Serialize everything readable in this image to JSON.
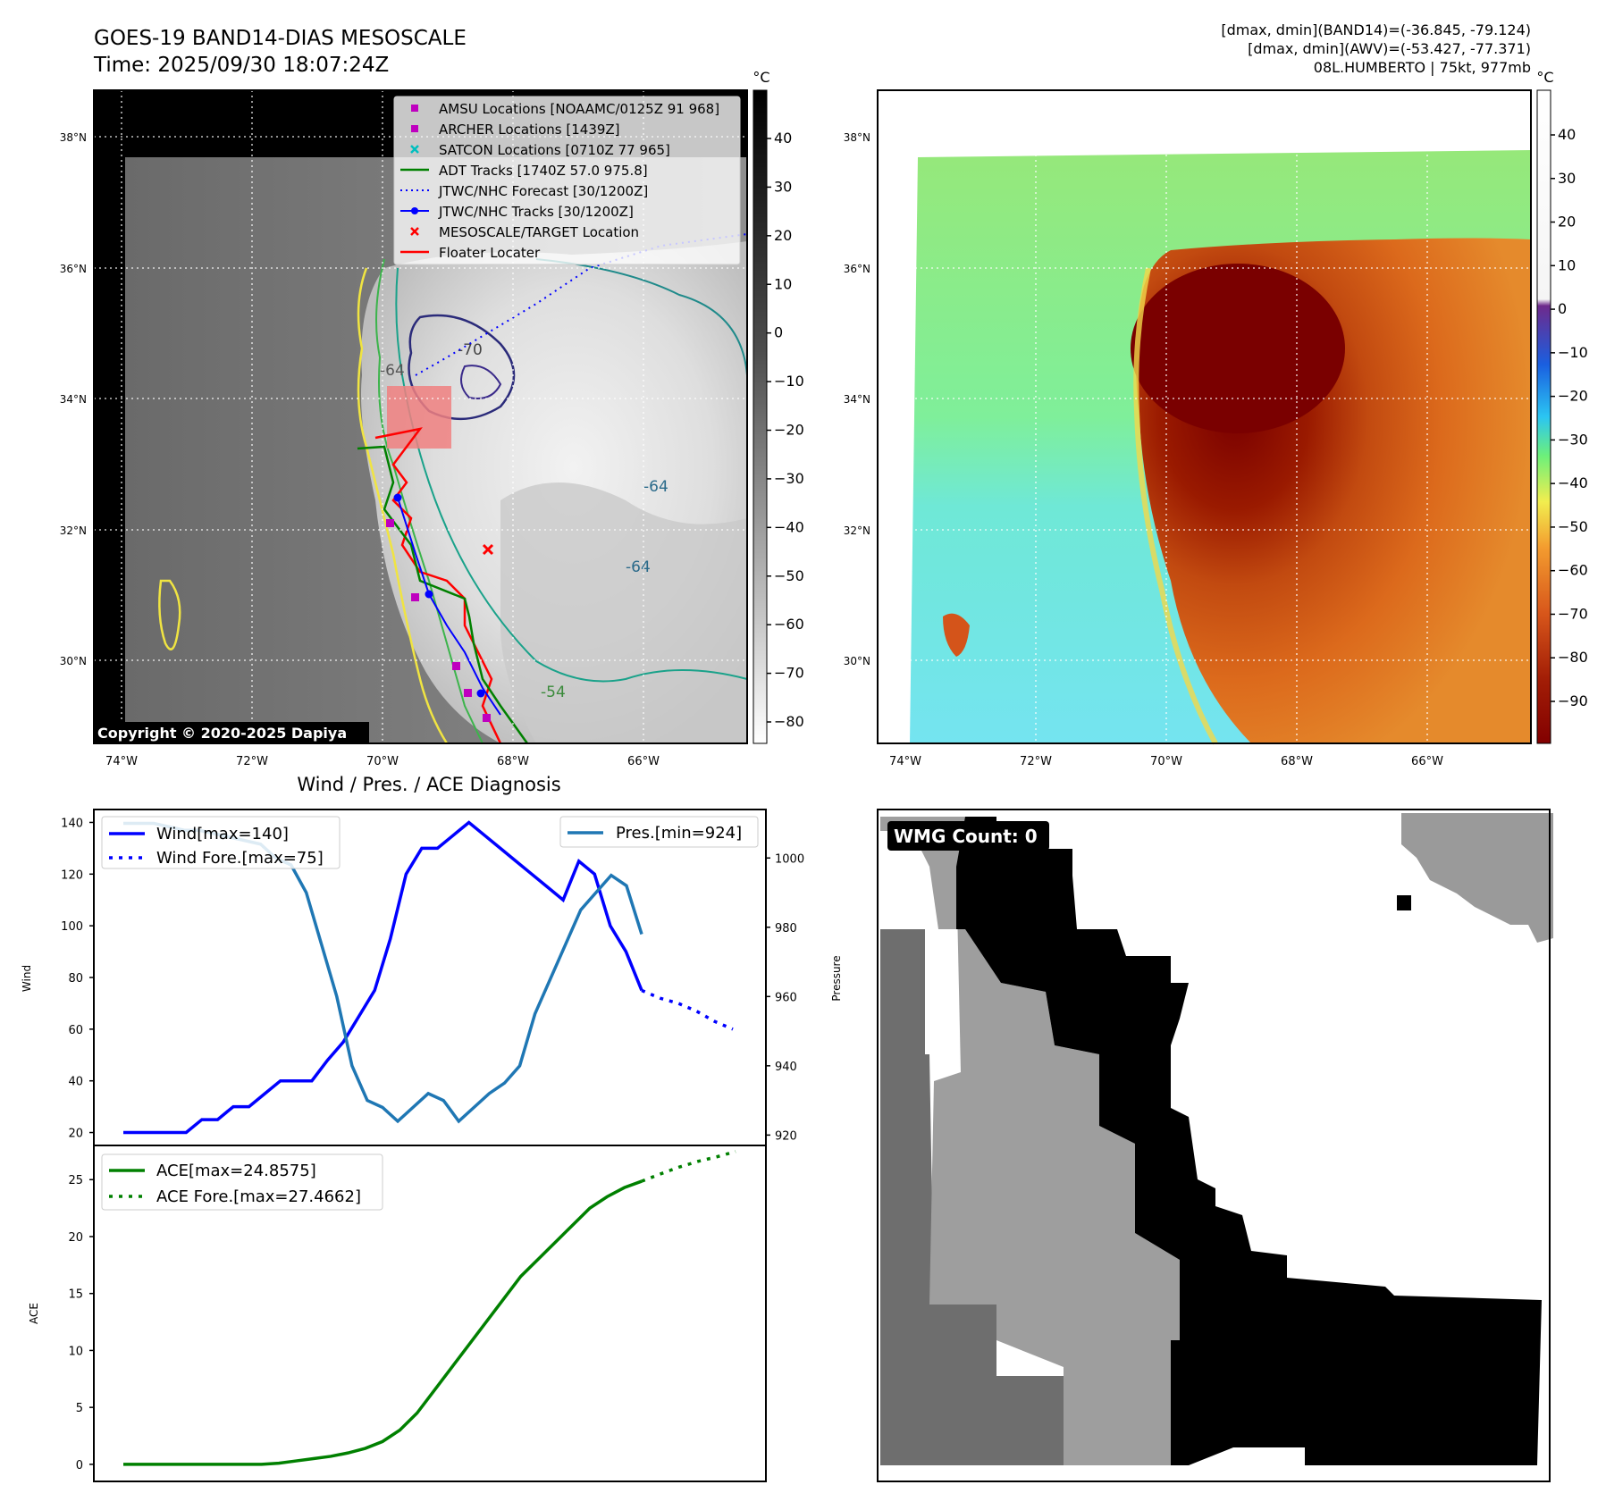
{
  "header": {
    "title": "GOES-19 BAND14-DIAS MESOSCALE",
    "time": "Time: 2025/09/30 18:07:24Z",
    "stats_line1": "[dmax, dmin](BAND14)=(-36.845, -79.124)",
    "stats_line2": "[dmax, dmin](AWV)=(-53.427, -77.371)",
    "storm": "08L.HUMBERTO | 75kt, 977mb"
  },
  "maps": {
    "lat_labels": [
      "38°N",
      "36°N",
      "34°N",
      "32°N",
      "30°N"
    ],
    "lon_labels": [
      "74°W",
      "72°W",
      "70°W",
      "68°W",
      "66°W"
    ],
    "copyright": "Copyright © 2020-2025 Dapiya",
    "contour_labels": [
      "-64",
      "-70",
      "-64",
      "-54",
      "-64"
    ],
    "colorbar_unit": "°C",
    "gray_colorbar_ticks": [
      "40",
      "30",
      "20",
      "10",
      "0",
      "−10",
      "−20",
      "−30",
      "−40",
      "−50",
      "−60",
      "−70",
      "−80"
    ],
    "color_colorbar_ticks": [
      "40",
      "30",
      "20",
      "10",
      "0",
      "−10",
      "−20",
      "−30",
      "−40",
      "−50",
      "−60",
      "−70",
      "−80",
      "−90"
    ],
    "legend": [
      {
        "label": "AMSU Locations [NOAAMC/0125Z 91 968]",
        "color": "#bf00bf",
        "marker": "square"
      },
      {
        "label": "ARCHER Locations [1439Z]",
        "color": "#bf00bf",
        "marker": "square"
      },
      {
        "label": "SATCON Locations [0710Z 77 965]",
        "color": "#00bfbf",
        "marker": "x"
      },
      {
        "label": "ADT Tracks [1740Z 57.0 975.8]",
        "color": "#008000",
        "marker": "line"
      },
      {
        "label": "JTWC/NHC Forecast [30/1200Z]",
        "color": "#0000ff",
        "marker": "dotted"
      },
      {
        "label": "JTWC/NHC Tracks [30/1200Z]",
        "color": "#0000ff",
        "marker": "line-dot"
      },
      {
        "label": "MESOSCALE/TARGET Location",
        "color": "#ff0000",
        "marker": "x"
      },
      {
        "label": "Floater Locater",
        "color": "#ff0000",
        "marker": "line"
      }
    ]
  },
  "diagnosis": {
    "title": "Wind / Pres. / ACE Diagnosis",
    "wind_legend": [
      "Wind[max=140]",
      "Wind Fore.[max=75]"
    ],
    "pres_legend": [
      "Pres.[min=924]"
    ],
    "ace_legend": [
      "ACE[max=24.8575]",
      "ACE Fore.[max=27.4662]"
    ],
    "wind_ylabel": "Wind",
    "pres_ylabel": "Pressure",
    "ace_ylabel": "ACE",
    "wind_ticks": [
      "140",
      "120",
      "100",
      "80",
      "60",
      "40",
      "20"
    ],
    "pres_ticks": [
      "1000",
      "980",
      "960",
      "940",
      "920"
    ],
    "ace_ticks": [
      "25",
      "20",
      "15",
      "10",
      "5",
      "0"
    ]
  },
  "wmg": {
    "label": "WMG Count: 0"
  },
  "chart_data": [
    {
      "type": "line",
      "title": "Wind / Pres. / ACE Diagnosis",
      "ylabel": "Wind",
      "ylim": [
        15,
        145
      ],
      "series": [
        {
          "name": "Wind[max=140]",
          "color": "#0000ff",
          "values": [
            20,
            20,
            20,
            20,
            20,
            25,
            25,
            30,
            30,
            35,
            40,
            40,
            40,
            48,
            55,
            65,
            75,
            95,
            120,
            130,
            130,
            135,
            140,
            135,
            130,
            125,
            120,
            115,
            110,
            125,
            120,
            100,
            90,
            75
          ]
        },
        {
          "name": "Wind Fore.[max=75]",
          "color": "#0000ff",
          "style": "dotted",
          "values": [
            75,
            72,
            70,
            67,
            63,
            60
          ]
        }
      ]
    },
    {
      "type": "line",
      "ylabel": "Pressure",
      "ylim": [
        917,
        1014
      ],
      "series": [
        {
          "name": "Pres.[min=924]",
          "color": "#1f77b4",
          "values": [
            1010,
            1010,
            1010,
            1009,
            1008,
            1008,
            1007,
            1006,
            1005,
            1004,
            1000,
            998,
            990,
            975,
            960,
            940,
            930,
            928,
            924,
            928,
            932,
            930,
            924,
            928,
            932,
            935,
            940,
            955,
            965,
            975,
            985,
            990,
            995,
            992,
            978
          ]
        }
      ]
    },
    {
      "type": "line",
      "ylabel": "ACE",
      "ylim": [
        -1.5,
        28
      ],
      "series": [
        {
          "name": "ACE[max=24.8575]",
          "color": "#008000",
          "values": [
            0,
            0,
            0,
            0,
            0,
            0,
            0,
            0,
            0,
            0.1,
            0.3,
            0.5,
            0.7,
            1,
            1.4,
            2,
            3,
            4.5,
            6.5,
            8.5,
            10.5,
            12.5,
            14.5,
            16.5,
            18,
            19.5,
            21,
            22.5,
            23.5,
            24.3,
            24.8575
          ]
        },
        {
          "name": "ACE Fore.[max=27.4662]",
          "color": "#008000",
          "style": "dotted",
          "values": [
            24.8575,
            25.5,
            26.1,
            26.6,
            27.0,
            27.4662
          ]
        }
      ]
    }
  ]
}
